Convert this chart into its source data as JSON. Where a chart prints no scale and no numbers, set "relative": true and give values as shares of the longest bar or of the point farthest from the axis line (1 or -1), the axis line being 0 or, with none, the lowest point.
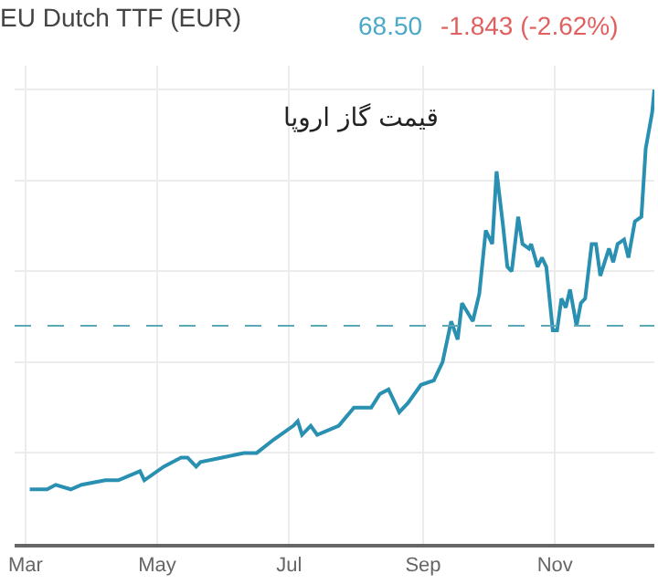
{
  "chart_data": {
    "type": "line",
    "title": "EU Dutch TTF (EUR)",
    "subtitle": "قیمت گاز اروپا",
    "annotations": [
      "68.50",
      "-1.843 (-2.62%)"
    ],
    "relative": true,
    "grid": true,
    "marker": "none",
    "line_style": "solid",
    "x": [
      "--03-03",
      "--03-11",
      "--03-15",
      "--03-22",
      "--03-27",
      "--04-07",
      "--04-13",
      "--04-23",
      "--04-25",
      "--05-04",
      "--05-12",
      "--05-15",
      "--05-19",
      "--05-21",
      "--05-31",
      "--06-10",
      "--06-16",
      "--06-24",
      "--07-03",
      "--07-05",
      "--07-07",
      "--07-11",
      "--07-14",
      "--07-24",
      "--07-31",
      "--08-08",
      "--08-12",
      "--08-16",
      "--08-21",
      "--08-25",
      "--08-31",
      "--09-06",
      "--09-10",
      "--09-14",
      "--09-17",
      "--09-19",
      "--09-24",
      "--09-27",
      "--09-30",
      "--10-03",
      "--10-05",
      "--10-08",
      "--10-10",
      "--10-12",
      "--10-15",
      "--10-17",
      "--10-20",
      "--10-21",
      "--10-24",
      "--10-26",
      "--10-28",
      "--10-31",
      "--11-02",
      "--11-04",
      "--11-06",
      "--11-08",
      "--11-11",
      "--11-13",
      "--11-15",
      "--11-18",
      "--11-20",
      "--11-22",
      "--11-26",
      "--11-28",
      "--11-30",
      "--12-03",
      "--12-05",
      "--12-08",
      "--12-11",
      "--12-13",
      "--12-16",
      "--12-17"
    ],
    "series": [
      {
        "color": "#2a90b2",
        "values": [
          0.12,
          0.12,
          0.13,
          0.12,
          0.13,
          0.14,
          0.14,
          0.16,
          0.14,
          0.17,
          0.19,
          0.19,
          0.17,
          0.18,
          0.19,
          0.2,
          0.2,
          0.23,
          0.26,
          0.27,
          0.24,
          0.26,
          0.24,
          0.26,
          0.3,
          0.3,
          0.33,
          0.34,
          0.29,
          0.31,
          0.35,
          0.36,
          0.4,
          0.49,
          0.45,
          0.53,
          0.49,
          0.55,
          0.69,
          0.66,
          0.82,
          0.7,
          0.61,
          0.6,
          0.72,
          0.66,
          0.65,
          0.66,
          0.61,
          0.63,
          0.61,
          0.47,
          0.47,
          0.54,
          0.52,
          0.56,
          0.48,
          0.53,
          0.54,
          0.66,
          0.66,
          0.59,
          0.65,
          0.62,
          0.66,
          0.67,
          0.63,
          0.71,
          0.72,
          0.87,
          0.95,
          1
        ]
      }
    ],
    "xlim": [
      "--02-24",
      "--12-17"
    ],
    "xticks": [
      {
        "value": "--03-01",
        "label": "Mar"
      },
      {
        "value": "--05-01",
        "label": "May"
      },
      {
        "value": "--07-01",
        "label": "Jul"
      },
      {
        "value": "--09-01",
        "label": "Sep"
      },
      {
        "value": "--11-01",
        "label": "Nov"
      }
    ],
    "ref_lines": [
      {
        "axis": "y",
        "value": 0.48,
        "color": "#5aa8b8",
        "line_style": "dashed"
      }
    ]
  }
}
